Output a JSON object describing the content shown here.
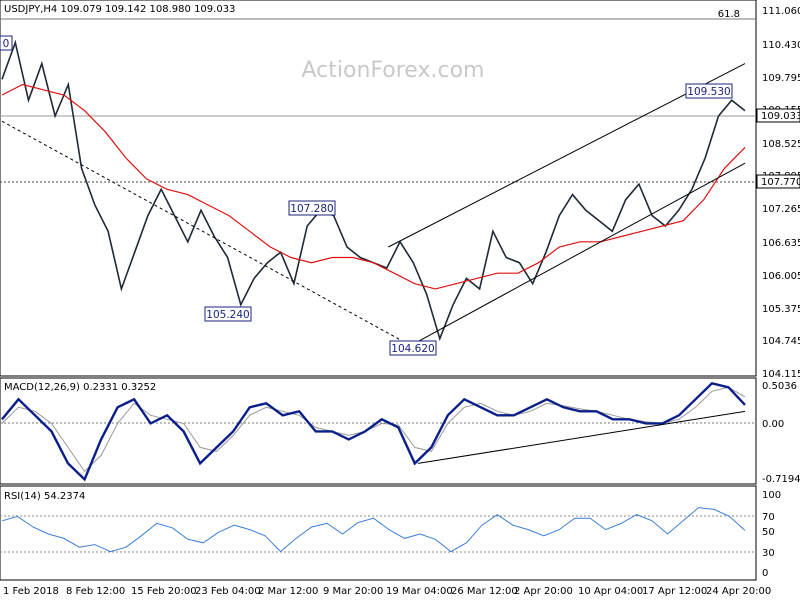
{
  "chart_data": [
    {
      "type": "candlestick",
      "title": "USDJPY,H4  109.079 109.142 108.980 109.033",
      "watermark": "ActionForex.com",
      "y_ticks": [
        "111.060",
        "110.430",
        "109.795",
        "109.155",
        "108.525",
        "107.895",
        "107.265",
        "106.635",
        "106.005",
        "105.375",
        "104.745",
        "104.115"
      ],
      "ylim": [
        104.115,
        111.06
      ],
      "last_price": "109.033",
      "level_line": {
        "value": 107.77,
        "label": "107.770"
      },
      "fib_label": "61.8",
      "annotations": [
        "109.530",
        "107.280",
        "105.240",
        "104.620"
      ],
      "annotation_values": [
        109.53,
        107.28,
        105.24,
        104.62
      ],
      "partial_left_label": "0",
      "x_ticks": [
        "1 Feb 2018",
        "8 Feb 12:00",
        "15 Feb 20:00",
        "23 Feb 04:00",
        "2 Mar 12:00",
        "9 Mar 20:00",
        "19 Mar 04:00",
        "26 Mar 12:00",
        "2 Apr 20:00",
        "10 Apr 04:00",
        "17 Apr 12:00",
        "24 Apr 20:00"
      ],
      "price_path": [
        109.7,
        110.4,
        109.3,
        110.0,
        109.0,
        109.6,
        108.0,
        107.3,
        106.8,
        105.7,
        106.4,
        107.1,
        107.6,
        107.1,
        106.6,
        107.2,
        106.7,
        106.3,
        105.4,
        105.9,
        106.2,
        106.4,
        105.8,
        106.9,
        107.2,
        107.1,
        106.5,
        106.3,
        106.2,
        106.1,
        106.6,
        106.2,
        105.6,
        104.75,
        105.4,
        105.9,
        105.7,
        106.8,
        106.3,
        106.2,
        105.8,
        106.4,
        107.1,
        107.5,
        107.2,
        107.0,
        106.8,
        107.4,
        107.7,
        107.1,
        106.9,
        107.2,
        107.6,
        108.2,
        109.0,
        109.3,
        109.1
      ],
      "ma_path": [
        109.4,
        109.6,
        109.5,
        109.4,
        109.1,
        108.7,
        108.2,
        107.8,
        107.6,
        107.5,
        107.3,
        107.1,
        106.8,
        106.5,
        106.3,
        106.2,
        106.3,
        106.3,
        106.2,
        106.0,
        105.8,
        105.7,
        105.8,
        105.9,
        106.0,
        106.0,
        106.2,
        106.5,
        106.6,
        106.6,
        106.7,
        106.8,
        106.9,
        107.0,
        107.4,
        108.0,
        108.4
      ],
      "trendlines": [
        {
          "name": "falling-trendline",
          "style": "dashed",
          "from": [
            0,
            108.9
          ],
          "to": [
            0.55,
            104.62
          ]
        },
        {
          "name": "channel-upper",
          "style": "solid",
          "from": [
            0.52,
            106.5
          ],
          "to": [
            1.0,
            110.0
          ]
        },
        {
          "name": "channel-lower",
          "style": "solid",
          "from": [
            0.55,
            104.62
          ],
          "to": [
            1.0,
            108.1
          ]
        }
      ]
    },
    {
      "type": "line",
      "title": "MACD(12,26,9) 0.2331 0.3252",
      "y_ticks": [
        "0.5036",
        "0.00",
        "-0.7194"
      ],
      "ylim": [
        -0.7194,
        0.5036
      ],
      "series": [
        {
          "name": "MACD",
          "values": [
            0.05,
            0.3,
            0.1,
            -0.1,
            -0.5,
            -0.7,
            -0.2,
            0.2,
            0.3,
            0.0,
            0.1,
            -0.1,
            -0.5,
            -0.3,
            -0.1,
            0.2,
            0.25,
            0.1,
            0.15,
            -0.1,
            -0.1,
            -0.2,
            -0.1,
            0.05,
            -0.05,
            -0.5,
            -0.3,
            0.1,
            0.3,
            0.2,
            0.1,
            0.1,
            0.2,
            0.3,
            0.2,
            0.15,
            0.15,
            0.05,
            0.05,
            0.0,
            0.0,
            0.1,
            0.3,
            0.5,
            0.45,
            0.23
          ]
        },
        {
          "name": "Signal",
          "values": [
            0.0,
            0.2,
            0.15,
            0.0,
            -0.3,
            -0.6,
            -0.4,
            0.0,
            0.25,
            0.1,
            0.05,
            0.0,
            -0.3,
            -0.35,
            -0.15,
            0.1,
            0.2,
            0.15,
            0.1,
            -0.05,
            -0.1,
            -0.15,
            -0.1,
            0.0,
            -0.02,
            -0.3,
            -0.35,
            0.0,
            0.2,
            0.25,
            0.15,
            0.1,
            0.15,
            0.25,
            0.22,
            0.18,
            0.15,
            0.1,
            0.05,
            0.02,
            0.0,
            0.05,
            0.2,
            0.4,
            0.45,
            0.33
          ]
        }
      ],
      "trendline": {
        "from": [
          0.56,
          -0.5
        ],
        "to": [
          1.0,
          0.15
        ]
      }
    },
    {
      "type": "line",
      "title": "RSI(14) 54.2374",
      "y_ticks": [
        "100",
        "70",
        "50",
        "30",
        "0"
      ],
      "ylim": [
        0,
        100
      ],
      "series": [
        {
          "name": "RSI",
          "values": [
            65,
            70,
            58,
            50,
            45,
            35,
            38,
            30,
            35,
            48,
            62,
            57,
            44,
            40,
            52,
            60,
            55,
            48,
            30,
            45,
            58,
            62,
            50,
            63,
            68,
            55,
            45,
            50,
            44,
            30,
            40,
            60,
            72,
            60,
            55,
            48,
            55,
            68,
            68,
            55,
            62,
            72,
            65,
            50,
            65,
            80,
            78,
            70,
            54
          ]
        }
      ]
    }
  ]
}
